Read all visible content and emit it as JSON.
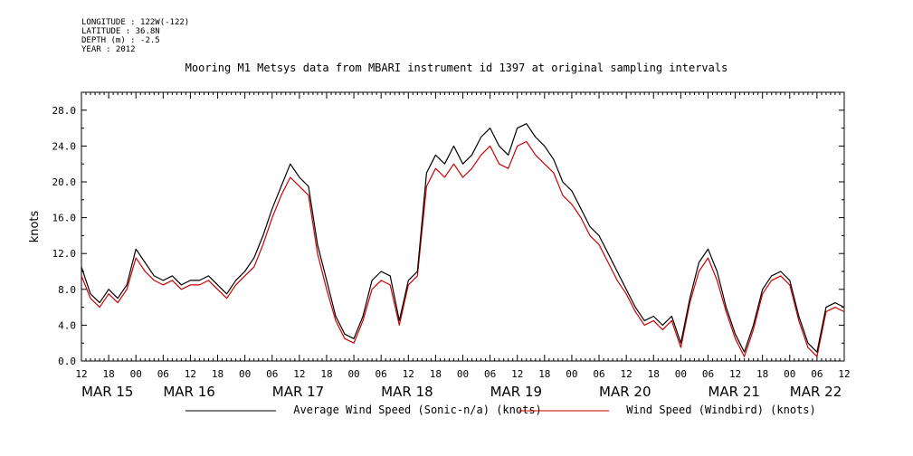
{
  "meta": {
    "longitude": "LONGITUDE : 122W(-122)",
    "latitude": "LATITUDE : 36.8N",
    "depth": "DEPTH (m) : -2.5",
    "year": "YEAR : 2012"
  },
  "chart_data": {
    "type": "line",
    "title": "Mooring M1 Metsys data from MBARI instrument id 1397 at original sampling intervals",
    "ylabel": "knots",
    "xlabel": "",
    "ylim": [
      0,
      30
    ],
    "xlim_hours": [
      0,
      168
    ],
    "yticks": [
      "0.0",
      "4.0",
      "8.0",
      "12.0",
      "16.0",
      "20.0",
      "24.0",
      "28.0"
    ],
    "yticks_values": [
      0,
      4,
      8,
      12,
      16,
      20,
      24,
      28
    ],
    "hour_ticks": [
      "12",
      "18",
      "00",
      "06",
      "12",
      "18",
      "00",
      "06",
      "12",
      "18",
      "00",
      "06",
      "12",
      "18",
      "00",
      "06",
      "12",
      "18",
      "00",
      "06",
      "12",
      "18",
      "00",
      "06",
      "12",
      "18",
      "00",
      "06",
      "12"
    ],
    "date_labels": [
      "MAR 15",
      "MAR 16",
      "MAR 17",
      "MAR 18",
      "MAR 19",
      "MAR 20",
      "MAR 21",
      "MAR 22"
    ],
    "date_label_hours": [
      0,
      18,
      42,
      66,
      90,
      114,
      138,
      156
    ],
    "grid": false,
    "legend_position": "bottom",
    "series": [
      {
        "name": "Average Wind Speed (Sonic-n/a) (knots)",
        "color": "#000000",
        "hours": [
          0,
          2,
          4,
          6,
          8,
          10,
          12,
          14,
          16,
          18,
          20,
          22,
          24,
          26,
          28,
          30,
          32,
          34,
          36,
          38,
          40,
          42,
          44,
          46,
          48,
          50,
          52,
          54,
          56,
          58,
          60,
          62,
          64,
          66,
          68,
          70,
          72,
          74,
          76,
          78,
          80,
          82,
          84,
          86,
          88,
          90,
          92,
          94,
          96,
          98,
          100,
          102,
          104,
          106,
          108,
          110,
          112,
          114,
          116,
          118,
          120,
          122,
          124,
          126,
          128,
          130,
          132,
          134,
          136,
          138,
          140,
          142,
          144,
          146,
          148,
          150,
          152,
          154,
          156,
          158,
          160,
          162,
          164,
          166,
          168
        ],
        "values": [
          10.5,
          7.5,
          6.5,
          8,
          7,
          8.5,
          12.5,
          11,
          9.5,
          9,
          9.5,
          8.5,
          9,
          9,
          9.5,
          8.5,
          7.5,
          9,
          10,
          11.5,
          14,
          17,
          19.5,
          22,
          20.5,
          19.5,
          13,
          9,
          5,
          3,
          2.5,
          5,
          9,
          10,
          9.5,
          4.5,
          9,
          10,
          21,
          23,
          22,
          24,
          22,
          23,
          25,
          26,
          24,
          23,
          26,
          26.5,
          25,
          24,
          22.5,
          20,
          19,
          17,
          15,
          14,
          12,
          10,
          8,
          6,
          4.5,
          5,
          4,
          5,
          2,
          7,
          11,
          12.5,
          10,
          6,
          3,
          1,
          4,
          8,
          9.5,
          10,
          9,
          5,
          2,
          1,
          6,
          6.5,
          6
        ]
      },
      {
        "name": "Wind Speed (Windbird) (knots)",
        "color": "#cc0000",
        "hours": [
          0,
          2,
          4,
          6,
          8,
          10,
          12,
          14,
          16,
          18,
          20,
          22,
          24,
          26,
          28,
          30,
          32,
          34,
          36,
          38,
          40,
          42,
          44,
          46,
          48,
          50,
          52,
          54,
          56,
          58,
          60,
          62,
          64,
          66,
          68,
          70,
          72,
          74,
          76,
          78,
          80,
          82,
          84,
          86,
          88,
          90,
          92,
          94,
          96,
          98,
          100,
          102,
          104,
          106,
          108,
          110,
          112,
          114,
          116,
          118,
          120,
          122,
          124,
          126,
          128,
          130,
          132,
          134,
          136,
          138,
          140,
          142,
          144,
          146,
          148,
          150,
          152,
          154,
          156,
          158,
          160,
          162,
          164,
          166,
          168
        ],
        "values": [
          9.5,
          7,
          6,
          7.5,
          6.5,
          8,
          11.5,
          10,
          9,
          8.5,
          9,
          8,
          8.5,
          8.5,
          9,
          8,
          7,
          8.5,
          9.5,
          10.5,
          13,
          16,
          18.5,
          20.5,
          19.5,
          18.5,
          12,
          8,
          4.5,
          2.5,
          2,
          4.5,
          8,
          9,
          8.5,
          4,
          8.5,
          9.5,
          19.5,
          21.5,
          20.5,
          22,
          20.5,
          21.5,
          23,
          24,
          22,
          21.5,
          24,
          24.5,
          23,
          22,
          21,
          18.5,
          17.5,
          16,
          14,
          13,
          11,
          9,
          7.5,
          5.5,
          4,
          4.5,
          3.5,
          4.5,
          1.5,
          6.5,
          10,
          11.5,
          9,
          5.5,
          2.5,
          0.5,
          3.5,
          7.5,
          9,
          9.5,
          8.5,
          4.5,
          1.5,
          0.5,
          5.5,
          6,
          5.5
        ]
      }
    ]
  }
}
